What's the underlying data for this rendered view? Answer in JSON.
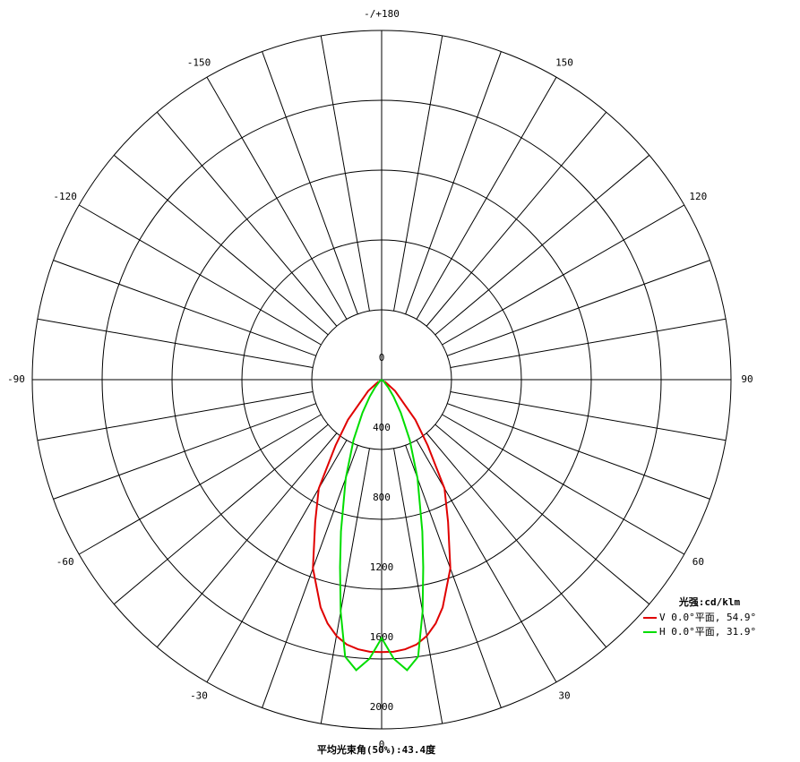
{
  "chart_data": {
    "type": "polar",
    "unit_title": "光强:cd/klm",
    "footer": "平均光束角(50%):43.4度",
    "theta": [
      -60,
      -50,
      -40,
      -35,
      -30,
      -25,
      -20,
      -15,
      -12.5,
      -10,
      -7.5,
      -5,
      -2.5,
      0,
      2.5,
      5,
      7.5,
      10,
      12.5,
      15,
      20,
      25,
      30,
      35,
      40,
      50,
      60
    ],
    "series": [
      {
        "name": "V 0.0°平面, 54.9°",
        "color": "#e00000",
        "values": [
          20,
          100,
          300,
          460,
          720,
          900,
          1150,
          1350,
          1430,
          1490,
          1530,
          1550,
          1560,
          1560,
          1560,
          1550,
          1530,
          1490,
          1430,
          1350,
          1150,
          900,
          720,
          460,
          300,
          100,
          20
        ]
      },
      {
        "name": "H 0.0°平面, 31.9°",
        "color": "#00dd00",
        "values": [
          0,
          15,
          60,
          120,
          220,
          380,
          600,
          900,
          1100,
          1350,
          1600,
          1670,
          1600,
          1480,
          1600,
          1670,
          1600,
          1350,
          1100,
          900,
          600,
          380,
          220,
          120,
          60,
          15,
          0
        ]
      }
    ],
    "rlim": [
      0,
      2000
    ],
    "rticks": [
      0,
      400,
      800,
      1200,
      1600,
      2000
    ],
    "thetaticks": [
      {
        "value": 180,
        "label": "-/+180"
      },
      -150,
      -120,
      -90,
      -60,
      -30,
      0,
      30,
      60,
      90,
      120,
      150
    ],
    "theta_gridlines": [
      -170,
      -160,
      -150,
      -140,
      -130,
      -120,
      -110,
      -100,
      -90,
      -80,
      -70,
      -60,
      -50,
      -40,
      -30,
      -20,
      -10,
      0,
      10,
      20,
      30,
      40,
      50,
      60,
      70,
      80,
      90,
      100,
      110,
      120,
      130,
      140,
      150,
      160,
      170,
      180
    ]
  }
}
